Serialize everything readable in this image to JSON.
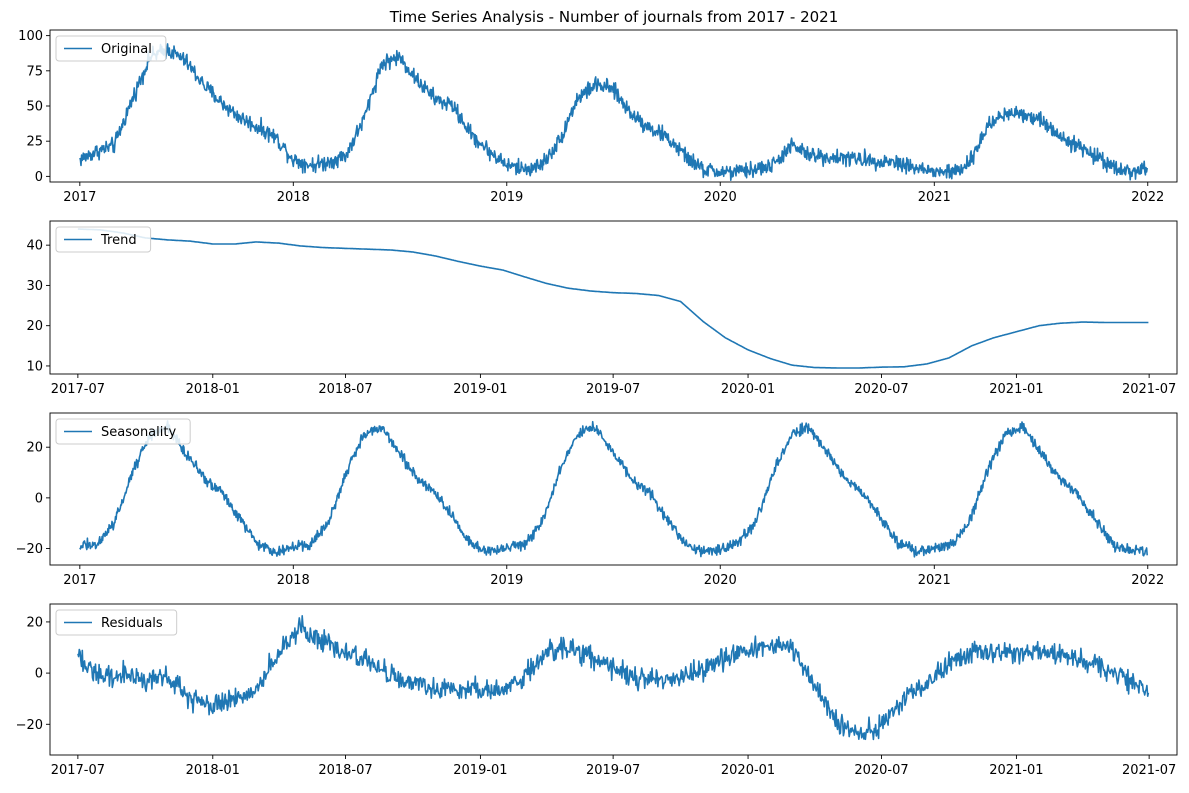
{
  "figure": {
    "title": "Time Series Analysis - Number of journals from 2017 - 2021",
    "line_color": "#1f77b4"
  },
  "chart_data": [
    {
      "type": "line",
      "legend": "Original",
      "legend_position": "top-left",
      "x_domain": [
        "2016-11-11",
        "2022-02-20"
      ],
      "ylim": [
        -4,
        104
      ],
      "x_ticks": [
        "2017-01-01",
        "2018-01-01",
        "2019-01-01",
        "2020-01-01",
        "2021-01-01",
        "2022-01-01"
      ],
      "x_tick_labels": [
        "2017",
        "2018",
        "2019",
        "2020",
        "2021",
        "2022"
      ],
      "y_ticks": [
        0,
        25,
        50,
        75,
        100
      ],
      "noise": 4,
      "x": [
        "2017-01-01",
        "2017-02-01",
        "2017-03-01",
        "2017-04-01",
        "2017-05-01",
        "2017-06-01",
        "2017-07-01",
        "2017-08-01",
        "2017-09-01",
        "2017-10-01",
        "2017-11-01",
        "2017-12-01",
        "2018-01-01",
        "2018-02-01",
        "2018-03-01",
        "2018-04-01",
        "2018-05-01",
        "2018-06-01",
        "2018-07-01",
        "2018-08-01",
        "2018-09-01",
        "2018-10-01",
        "2018-11-01",
        "2018-12-01",
        "2019-01-01",
        "2019-02-01",
        "2019-03-01",
        "2019-04-01",
        "2019-05-01",
        "2019-06-01",
        "2019-07-01",
        "2019-08-01",
        "2019-09-01",
        "2019-10-01",
        "2019-11-01",
        "2019-12-01",
        "2020-01-01",
        "2020-02-01",
        "2020-03-01",
        "2020-04-01",
        "2020-05-01",
        "2020-06-01",
        "2020-07-01",
        "2020-08-01",
        "2020-09-01",
        "2020-10-01",
        "2020-11-01",
        "2020-12-01",
        "2021-01-01",
        "2021-02-01",
        "2021-03-01",
        "2021-04-01",
        "2021-05-01",
        "2021-06-01",
        "2021-07-01",
        "2021-08-01",
        "2021-09-01",
        "2021-10-01",
        "2021-11-01",
        "2021-12-01",
        "2021-12-31"
      ],
      "y": [
        12,
        18,
        22,
        55,
        85,
        90,
        82,
        65,
        52,
        42,
        35,
        28,
        12,
        8,
        10,
        15,
        40,
        80,
        85,
        68,
        55,
        50,
        30,
        18,
        8,
        5,
        8,
        25,
        55,
        65,
        62,
        45,
        35,
        28,
        15,
        5,
        3,
        3,
        5,
        8,
        22,
        15,
        14,
        13,
        12,
        11,
        10,
        6,
        3,
        3,
        8,
        35,
        45,
        45,
        40,
        30,
        22,
        15,
        8,
        3,
        5
      ]
    },
    {
      "type": "line",
      "legend": "Trend",
      "legend_position": "top-left",
      "x_domain": [
        "2017-05-24",
        "2021-08-08"
      ],
      "ylim": [
        8,
        46
      ],
      "x_ticks": [
        "2017-07-01",
        "2018-01-01",
        "2018-07-01",
        "2019-01-01",
        "2019-07-01",
        "2020-01-01",
        "2020-07-01",
        "2021-01-01",
        "2021-07-01"
      ],
      "x_tick_labels": [
        "2017-07",
        "2018-01",
        "2018-07",
        "2019-01",
        "2019-07",
        "2020-01",
        "2020-07",
        "2021-01",
        "2021-07"
      ],
      "y_ticks": [
        10,
        20,
        30,
        40
      ],
      "noise": 0,
      "x": [
        "2017-07-01",
        "2017-08-01",
        "2017-09-01",
        "2017-10-01",
        "2017-11-01",
        "2017-12-01",
        "2018-01-01",
        "2018-02-01",
        "2018-03-01",
        "2018-04-01",
        "2018-05-01",
        "2018-06-01",
        "2018-07-01",
        "2018-08-01",
        "2018-09-01",
        "2018-10-01",
        "2018-11-01",
        "2018-12-01",
        "2019-01-01",
        "2019-02-01",
        "2019-03-01",
        "2019-04-01",
        "2019-05-01",
        "2019-06-01",
        "2019-07-01",
        "2019-08-01",
        "2019-09-01",
        "2019-10-01",
        "2019-11-01",
        "2019-12-01",
        "2020-01-01",
        "2020-02-01",
        "2020-03-01",
        "2020-04-01",
        "2020-05-01",
        "2020-06-01",
        "2020-07-01",
        "2020-08-01",
        "2020-09-01",
        "2020-10-01",
        "2020-11-01",
        "2020-12-01",
        "2021-01-01",
        "2021-02-01",
        "2021-03-01",
        "2021-04-01",
        "2021-05-01",
        "2021-06-01",
        "2021-06-30"
      ],
      "y": [
        44,
        43.8,
        43,
        41.8,
        41.3,
        41,
        40.3,
        40.3,
        40.8,
        40.5,
        39.8,
        39.4,
        39.2,
        39,
        38.8,
        38.3,
        37.3,
        36,
        34.8,
        33.8,
        32.2,
        30.5,
        29.3,
        28.6,
        28.2,
        28,
        27.5,
        26,
        21,
        17,
        14,
        11.8,
        10.2,
        9.6,
        9.5,
        9.5,
        9.7,
        9.8,
        10.5,
        12,
        15,
        17,
        18.5,
        20,
        20.6,
        20.9,
        20.8,
        20.8,
        20.8
      ]
    },
    {
      "type": "line",
      "legend": "Seasonality",
      "legend_position": "top-left",
      "x_domain": [
        "2016-11-11",
        "2022-02-20"
      ],
      "ylim": [
        -26.5,
        33.5
      ],
      "x_ticks": [
        "2017-01-01",
        "2018-01-01",
        "2019-01-01",
        "2020-01-01",
        "2021-01-01",
        "2022-01-01"
      ],
      "x_tick_labels": [
        "2017",
        "2018",
        "2019",
        "2020",
        "2021",
        "2022"
      ],
      "y_ticks": [
        -20,
        0,
        20
      ],
      "noise": 1.5,
      "x": [
        "2017-01-01",
        "2017-02-01",
        "2017-03-01",
        "2017-04-01",
        "2017-05-01",
        "2017-06-01",
        "2017-07-01",
        "2017-08-01",
        "2017-09-01",
        "2017-10-01",
        "2017-11-01",
        "2017-12-01",
        "2018-01-01",
        "2018-02-01",
        "2018-03-01",
        "2018-04-01",
        "2018-05-01",
        "2018-06-01",
        "2018-07-01",
        "2018-08-01",
        "2018-09-01",
        "2018-10-01",
        "2018-11-01",
        "2018-12-01",
        "2019-01-01",
        "2019-02-01",
        "2019-03-01",
        "2019-04-01",
        "2019-05-01",
        "2019-06-01",
        "2019-07-01",
        "2019-08-01",
        "2019-09-01",
        "2019-10-01",
        "2019-11-01",
        "2019-12-01",
        "2020-01-01",
        "2020-02-01",
        "2020-03-01",
        "2020-04-01",
        "2020-05-01",
        "2020-06-01",
        "2020-07-01",
        "2020-08-01",
        "2020-09-01",
        "2020-10-01",
        "2020-11-01",
        "2020-12-01",
        "2021-01-01",
        "2021-02-01",
        "2021-03-01",
        "2021-04-01",
        "2021-05-01",
        "2021-06-01",
        "2021-07-01",
        "2021-08-01",
        "2021-09-01",
        "2021-10-01",
        "2021-11-01",
        "2021-12-01",
        "2021-12-31"
      ],
      "y": [
        -19,
        -18,
        -10,
        10,
        25,
        28,
        18,
        8,
        2,
        -8,
        -18,
        -21,
        -20,
        -18,
        -10,
        10,
        25,
        28,
        18,
        8,
        2,
        -8,
        -18,
        -21,
        -20,
        -18,
        -10,
        10,
        25,
        28,
        18,
        8,
        2,
        -8,
        -18,
        -21,
        -20,
        -18,
        -10,
        10,
        25,
        28,
        18,
        8,
        2,
        -8,
        -18,
        -21,
        -20,
        -18,
        -10,
        10,
        25,
        28,
        18,
        8,
        2,
        -8,
        -18,
        -21,
        -21
      ]
    },
    {
      "type": "line",
      "legend": "Residuals",
      "legend_position": "top-left",
      "x_domain": [
        "2017-05-24",
        "2021-08-08"
      ],
      "ylim": [
        -32,
        27
      ],
      "x_ticks": [
        "2017-07-01",
        "2018-01-01",
        "2018-07-01",
        "2019-01-01",
        "2019-07-01",
        "2020-01-01",
        "2020-07-01",
        "2021-01-01",
        "2021-07-01"
      ],
      "x_tick_labels": [
        "2017-07",
        "2018-01",
        "2018-07",
        "2019-01",
        "2019-07",
        "2020-01",
        "2020-07",
        "2021-01",
        "2021-07"
      ],
      "y_ticks": [
        -20,
        0,
        20
      ],
      "noise": 3,
      "x": [
        "2017-07-01",
        "2017-08-01",
        "2017-09-01",
        "2017-10-01",
        "2017-11-01",
        "2017-12-01",
        "2018-01-01",
        "2018-02-01",
        "2018-03-01",
        "2018-04-01",
        "2018-05-01",
        "2018-06-01",
        "2018-07-01",
        "2018-08-01",
        "2018-09-01",
        "2018-10-01",
        "2018-11-01",
        "2018-12-01",
        "2019-01-01",
        "2019-02-01",
        "2019-03-01",
        "2019-04-01",
        "2019-05-01",
        "2019-06-01",
        "2019-07-01",
        "2019-08-01",
        "2019-09-01",
        "2019-10-01",
        "2019-11-01",
        "2019-12-01",
        "2020-01-01",
        "2020-02-01",
        "2020-03-01",
        "2020-04-01",
        "2020-05-01",
        "2020-06-01",
        "2020-07-01",
        "2020-08-01",
        "2020-09-01",
        "2020-10-01",
        "2020-11-01",
        "2020-12-01",
        "2021-01-01",
        "2021-02-01",
        "2021-03-01",
        "2021-04-01",
        "2021-05-01",
        "2021-06-01",
        "2021-06-30"
      ],
      "y": [
        6,
        -2,
        0,
        -3,
        -1,
        -10,
        -12,
        -10,
        -6,
        8,
        18,
        12,
        8,
        5,
        0,
        -4,
        -6,
        -6,
        -6,
        -6,
        -2,
        8,
        10,
        6,
        2,
        -2,
        -2,
        -2,
        2,
        6,
        10,
        11,
        10,
        -5,
        -20,
        -24,
        -20,
        -10,
        -4,
        4,
        8,
        8,
        8,
        9,
        7,
        5,
        2,
        -2,
        -8
      ]
    }
  ]
}
